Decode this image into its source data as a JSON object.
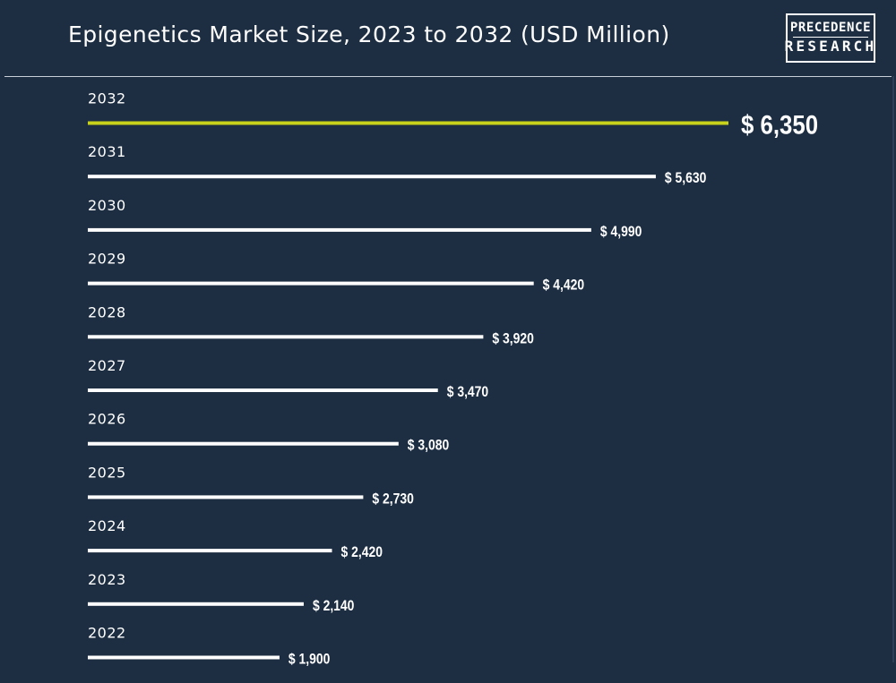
{
  "header": {
    "title": "Epigenetics Market Size, 2023 to 2032 (USD Million)",
    "logo_line1": "PRECEDENCE",
    "logo_line2": "RESEARCH"
  },
  "colors": {
    "background": "#1d2e42",
    "bar": "#ffffff",
    "highlight_bar": "#c8d21b",
    "text": "#ffffff"
  },
  "chart_data": {
    "type": "bar",
    "orientation": "horizontal",
    "title": "Epigenetics Market Size, 2023 to 2032 (USD Million)",
    "categories": [
      "2032",
      "2031",
      "2030",
      "2029",
      "2028",
      "2027",
      "2026",
      "2025",
      "2024",
      "2023",
      "2022"
    ],
    "values": [
      6350,
      5630,
      4990,
      4420,
      3920,
      3470,
      3080,
      2730,
      2420,
      2140,
      1900
    ],
    "value_labels": [
      "$ 6,350",
      "$ 5,630",
      "$ 4,990",
      "$ 4,420",
      "$ 3,920",
      "$ 3,470",
      "$ 3,080",
      "$ 2,730",
      "$ 2,420",
      "$ 2,140",
      "$ 1,900"
    ],
    "highlight_category": "2032",
    "xlim": [
      0,
      6350
    ],
    "grid": false,
    "legend": "none"
  }
}
